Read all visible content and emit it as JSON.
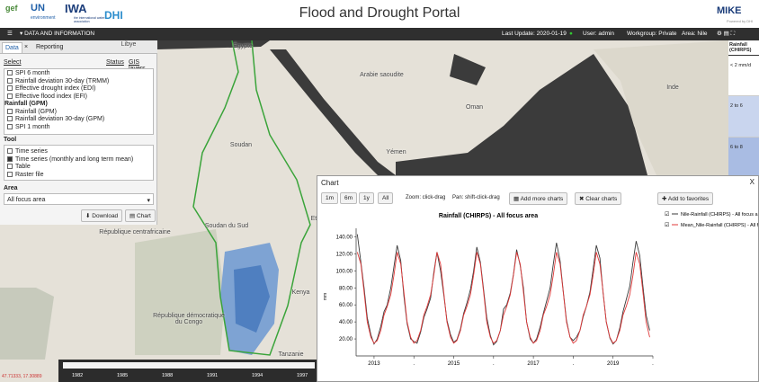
{
  "header": {
    "title": "Flood and Drought Portal",
    "logos": [
      "gef",
      "UN",
      "environment",
      "IWA",
      "the international water association",
      "DHI",
      "MIKE",
      "Powered by DHI"
    ]
  },
  "nav": {
    "menu": "DATA AND INFORMATION",
    "last_update": "Last Update: 2020-01-19",
    "user": "User: admin",
    "workgroup": "Workgroup: Private",
    "area": "Area: Nile"
  },
  "panel": {
    "tabs": [
      "Data",
      "Reporting"
    ],
    "links": [
      "Select",
      "Status",
      "GIS layers"
    ],
    "layers": [
      "SPI 6 month",
      "Rainfall deviation 30-day (TRMM)",
      "Effective drought index (EDI)",
      "Effective flood index (EFI)"
    ],
    "group": "Rainfall (GPM)",
    "group_layers": [
      "Rainfall (GPM)",
      "Rainfall deviation 30-day (GPM)",
      "SPI 1 month"
    ],
    "tool_label": "Tool",
    "tools": [
      {
        "label": "Time series",
        "checked": false
      },
      {
        "label": "Time series (monthly and long term mean)",
        "checked": true
      },
      {
        "label": "Table",
        "checked": false
      },
      {
        "label": "Raster file",
        "checked": false
      }
    ],
    "area_label": "Area",
    "area_value": "All focus area",
    "buttons": [
      "Download",
      "Chart"
    ]
  },
  "map": {
    "labels": [
      "Libye",
      "Égypte",
      "Arabie saoudite",
      "Oman",
      "Inde",
      "Yémen",
      "Soudan",
      "Soudan du Sud",
      "Ethiop",
      "République centrafricaine",
      "Kenya",
      "République démocratique du Congo",
      "Tanzanie"
    ],
    "coords": "47.71333, 17.30889",
    "timeline": [
      "1982",
      "1985",
      "1988",
      "1991",
      "1994",
      "1997"
    ]
  },
  "legend": {
    "title": "Rainfall (CHIRPS)",
    "classes": [
      {
        "label": "< 2 mm/d",
        "color": "#ffffff"
      },
      {
        "label": "2 to 6",
        "color": "#c9d5ee"
      },
      {
        "label": "6 to 8",
        "color": "#a9bce3"
      }
    ]
  },
  "chart_panel": {
    "title": "Chart",
    "close": "X",
    "ranges": [
      "1m",
      "6m",
      "1y",
      "All"
    ],
    "hints": [
      "Zoom: click-drag",
      "Pan: shift-click-drag"
    ],
    "buttons": [
      "Add more charts",
      "Clear charts",
      "Add to favorites"
    ]
  },
  "chart": {
    "type": "line",
    "title": "Rainfall (CHIRPS) - All focus area",
    "y_label": "mm",
    "grid": false,
    "xlim": [
      2012.55,
      2020.0
    ],
    "ylim": [
      0,
      150
    ],
    "xticks": [
      2013,
      {
        "value": 2014,
        "label": "."
      },
      2015,
      {
        "value": 2016,
        "label": "."
      },
      2017,
      {
        "value": 2018,
        "label": "."
      },
      2019,
      {
        "value": 2020,
        "label": "."
      }
    ],
    "yticks": [
      {
        "value": 20,
        "label": "20.00"
      },
      {
        "value": 40,
        "label": "40.00"
      },
      {
        "value": 60,
        "label": "60.00"
      },
      {
        "value": 80,
        "label": "80.00"
      },
      {
        "value": 100,
        "label": "100.00"
      },
      {
        "value": 120,
        "label": "120.00"
      },
      {
        "value": 140,
        "label": "140.00"
      }
    ],
    "x": [
      2012.58,
      2012.67,
      2012.75,
      2012.83,
      2012.92,
      2013,
      2013.08,
      2013.17,
      2013.25,
      2013.33,
      2013.42,
      2013.5,
      2013.58,
      2013.67,
      2013.75,
      2013.83,
      2013.92,
      2014,
      2014.08,
      2014.17,
      2014.25,
      2014.33,
      2014.42,
      2014.5,
      2014.58,
      2014.67,
      2014.75,
      2014.83,
      2014.92,
      2015,
      2015.08,
      2015.17,
      2015.25,
      2015.33,
      2015.42,
      2015.5,
      2015.58,
      2015.67,
      2015.75,
      2015.83,
      2015.92,
      2016,
      2016.08,
      2016.17,
      2016.25,
      2016.33,
      2016.42,
      2016.5,
      2016.58,
      2016.67,
      2016.75,
      2016.83,
      2016.92,
      2017,
      2017.08,
      2017.17,
      2017.25,
      2017.33,
      2017.42,
      2017.5,
      2017.58,
      2017.67,
      2017.75,
      2017.83,
      2017.92,
      2018,
      2018.08,
      2018.17,
      2018.25,
      2018.33,
      2018.42,
      2018.5,
      2018.58,
      2018.67,
      2018.75,
      2018.83,
      2018.92,
      2019,
      2019.08,
      2019.17,
      2019.25,
      2019.33,
      2019.42,
      2019.5,
      2019.58,
      2019.67,
      2019.75,
      2019.83,
      2019.92
    ],
    "series": [
      {
        "name": "Nile-Rainfall (CHIRPS) - All focus area-Mo",
        "color": "#3a3a3a",
        "values": [
          143,
          110,
          80,
          45,
          25,
          14,
          20,
          35,
          52,
          60,
          80,
          105,
          130,
          112,
          70,
          38,
          20,
          17,
          15,
          28,
          45,
          55,
          68,
          98,
          122,
          100,
          72,
          42,
          25,
          16,
          19,
          32,
          50,
          62,
          78,
          100,
          128,
          110,
          78,
          45,
          24,
          13,
          17,
          30,
          55,
          60,
          74,
          96,
          125,
          106,
          80,
          40,
          20,
          15,
          20,
          34,
          50,
          64,
          80,
          108,
          133,
          112,
          76,
          42,
          22,
          18,
          22,
          30,
          46,
          58,
          75,
          102,
          130,
          115,
          74,
          40,
          21,
          14,
          18,
          33,
          52,
          66,
          82,
          110,
          135,
          118,
          82,
          48,
          30
        ]
      },
      {
        "name": "Mean_Nile-Rainfall (CHIRPS) - All focus area-Mo",
        "color": "#e03a3a",
        "values": [
          122,
          108,
          75,
          40,
          22,
          15,
          18,
          30,
          48,
          58,
          72,
          95,
          122,
          108,
          75,
          40,
          22,
          15,
          18,
          30,
          48,
          58,
          72,
          95,
          122,
          108,
          75,
          40,
          22,
          15,
          18,
          30,
          48,
          58,
          72,
          95,
          122,
          108,
          75,
          40,
          22,
          15,
          18,
          30,
          48,
          58,
          72,
          95,
          122,
          108,
          75,
          40,
          22,
          15,
          18,
          30,
          48,
          58,
          72,
          95,
          122,
          108,
          75,
          40,
          22,
          15,
          18,
          30,
          48,
          58,
          72,
          95,
          122,
          108,
          75,
          40,
          22,
          15,
          18,
          30,
          48,
          58,
          72,
          95,
          122,
          108,
          75,
          40,
          22
        ]
      }
    ]
  }
}
